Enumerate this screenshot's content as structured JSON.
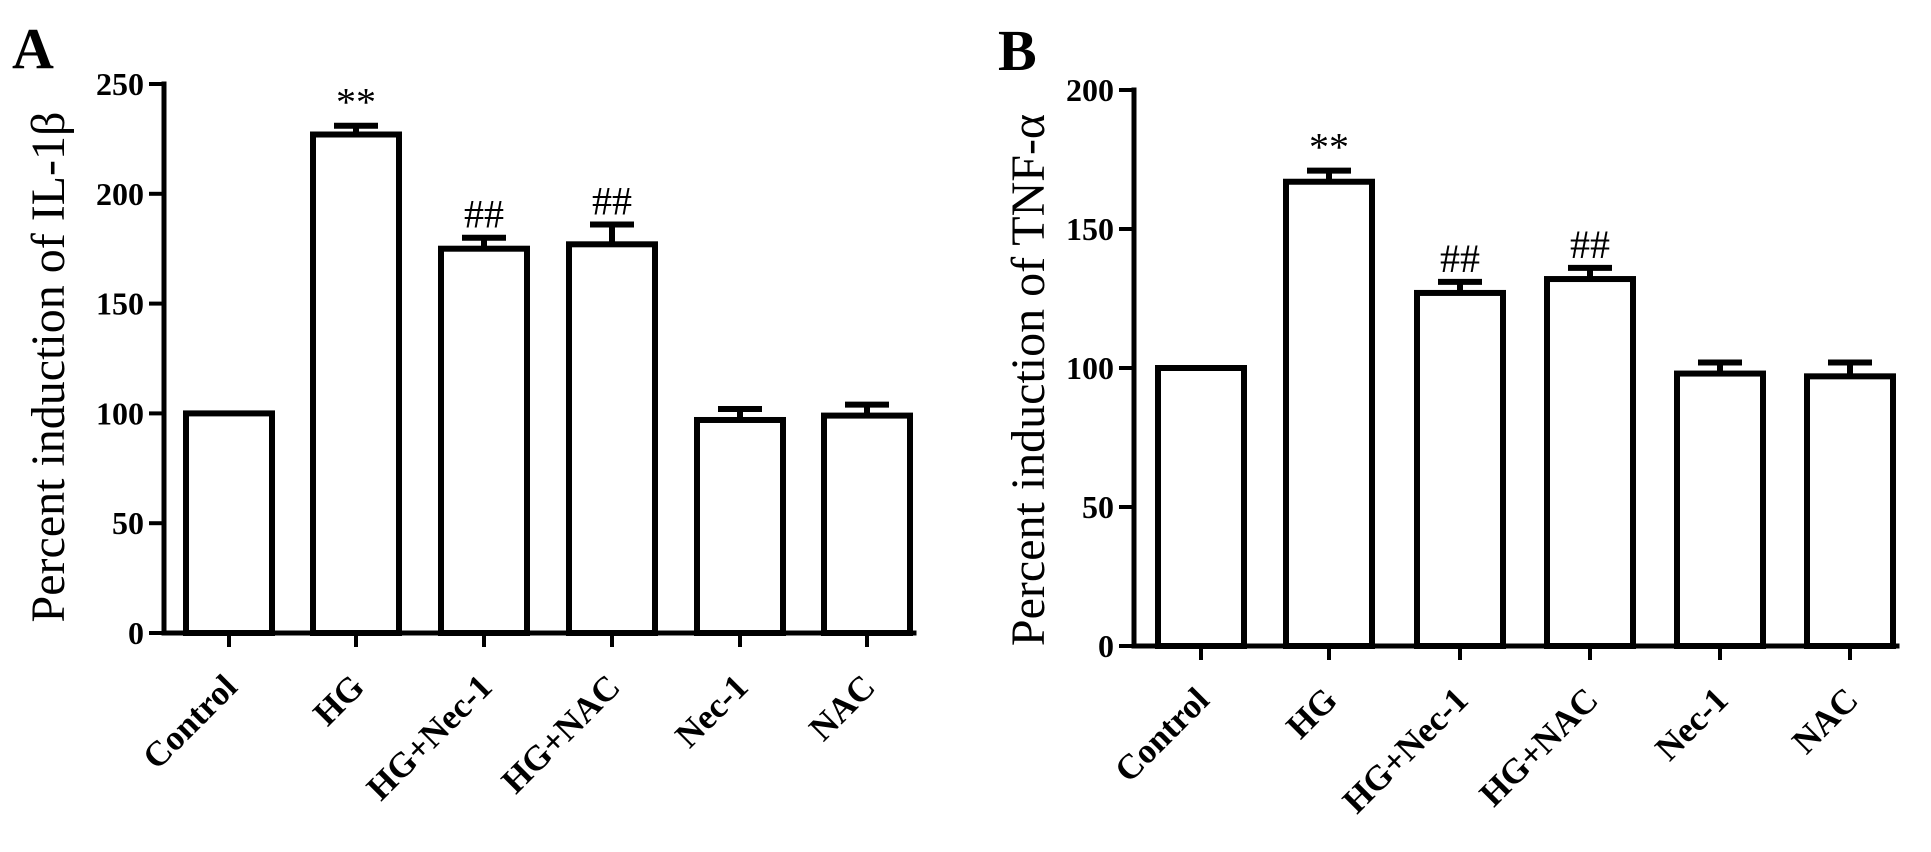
{
  "chart_data": [
    {
      "type": "bar",
      "panel": "A",
      "categories": [
        "Control",
        "HG",
        "HG+Nec-1",
        "HG+NAC",
        "Nec-1",
        "NAC"
      ],
      "values": [
        100,
        227,
        175,
        177,
        97,
        99
      ],
      "errors": [
        0,
        4,
        5,
        9,
        5,
        5
      ],
      "annotations": [
        "",
        "**",
        "##",
        "##",
        "",
        ""
      ],
      "ylabel": "Percent induction of IL-1β",
      "ylim": [
        0,
        250
      ],
      "yticks": [
        0,
        50,
        100,
        150,
        200,
        250
      ],
      "grid": false,
      "bar_fill": "#ffffff",
      "stroke": "#000000"
    },
    {
      "type": "bar",
      "panel": "B",
      "categories": [
        "Control",
        "HG",
        "HG+Nec-1",
        "HG+NAC",
        "Nec-1",
        "NAC"
      ],
      "values": [
        100,
        167,
        127,
        132,
        98,
        97
      ],
      "errors": [
        0,
        4,
        4,
        4,
        4,
        5
      ],
      "annotations": [
        "",
        "**",
        "##",
        "##",
        "",
        ""
      ],
      "ylabel": "Percent induction of TNF-α",
      "ylim": [
        0,
        200
      ],
      "yticks": [
        0,
        50,
        100,
        150,
        200
      ],
      "grid": false,
      "bar_fill": "#ffffff",
      "stroke": "#000000"
    }
  ]
}
